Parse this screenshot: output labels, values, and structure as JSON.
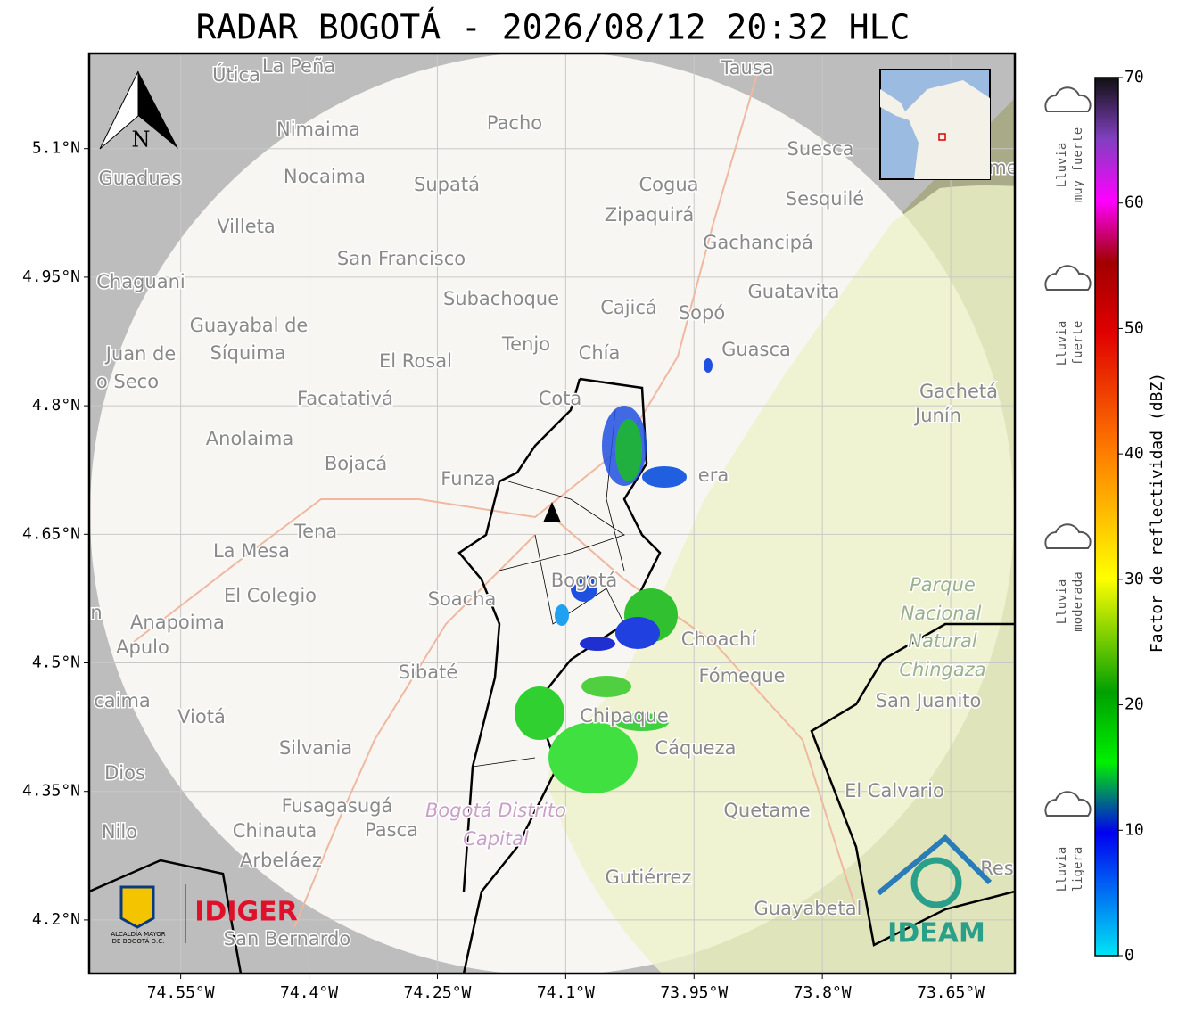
{
  "title": "RADAR BOGOTÁ - 2026/08/12 20:32 HLC",
  "map": {
    "xlim": [
      -74.657,
      -73.575
    ],
    "ylim": [
      4.1375,
      5.211
    ],
    "xticks": [
      {
        "value": -74.55,
        "label": "74.55°W"
      },
      {
        "value": -74.4,
        "label": "74.4°W"
      },
      {
        "value": -74.25,
        "label": "74.25°W"
      },
      {
        "value": -74.1,
        "label": "74.1°W"
      },
      {
        "value": -73.95,
        "label": "73.95°W"
      },
      {
        "value": -73.8,
        "label": "73.8°W"
      },
      {
        "value": -73.65,
        "label": "73.65°W"
      }
    ],
    "yticks": [
      {
        "value": 5.1,
        "label": "5.1°N"
      },
      {
        "value": 4.95,
        "label": "4.95°N"
      },
      {
        "value": 4.8,
        "label": "4.8°N"
      },
      {
        "value": 4.65,
        "label": "4.65°N"
      },
      {
        "value": 4.5,
        "label": "4.5°N"
      },
      {
        "value": 4.35,
        "label": "4.35°N"
      },
      {
        "value": 4.2,
        "label": "4.2°N"
      }
    ],
    "north": "N",
    "places": [
      "Útica",
      "La Peña",
      "Tausa",
      "Pacho",
      "Nimaima",
      "Suesca",
      "Guaduas",
      "Nocaima",
      "Supatá",
      "Cogua",
      "Sesquilé",
      "Zipaquirá",
      "Villeta",
      "Gachancipá",
      "San Francisco",
      "Chaguani",
      "Guatavita",
      "Subachoque",
      "Cajicá",
      "Sopó",
      "Guayabal de",
      "Síquima",
      "Juan de",
      "Tenjo",
      "Chía",
      "Guasca",
      "El Rosal",
      "o Seco",
      "Facatativá",
      "Cota",
      "Gachetá",
      "Junín",
      "Anolaima",
      "Bojacá",
      "Funza",
      "era",
      "Tena",
      "La Mesa",
      "Bogotá",
      "Parque",
      "El Colegio",
      "Soacha",
      "Nacional",
      "Anapoima",
      "Natural",
      "Choachí",
      "Apulo",
      "Chingaza",
      "Sibaté",
      "Fómeque",
      "San Juanito",
      "caima",
      "Viotá",
      "Chipaque",
      "Cáqueza",
      "Silvania",
      "Dios",
      "El Calvario",
      "Fusagasugá",
      "Quetame",
      "Bogotá Distrito",
      "Nilo",
      "Chinauta",
      "Pasca",
      "Capital",
      "Arbeláez",
      "Gutiérrez",
      "Guayabetal",
      "San Bernardo",
      "n",
      "Res",
      "me"
    ]
  },
  "colorbar": {
    "label": "Factor de reflectividad (dBZ)",
    "lim": [
      0,
      70
    ],
    "ticks": [
      0,
      10,
      20,
      30,
      40,
      50,
      60,
      70
    ]
  },
  "rain": [
    [
      "Lluvia",
      "muy fuerte"
    ],
    [
      "Lluvia",
      "fuerte"
    ],
    [
      "Lluvia",
      "moderada"
    ],
    [
      "Lluvia",
      "ligera"
    ]
  ],
  "logos": {
    "alcaldia": [
      "ALCALDÍA MAYOR",
      "DE BOGOTÁ D.C."
    ],
    "idiger": "IDIGER",
    "ideam": "IDEAM"
  }
}
